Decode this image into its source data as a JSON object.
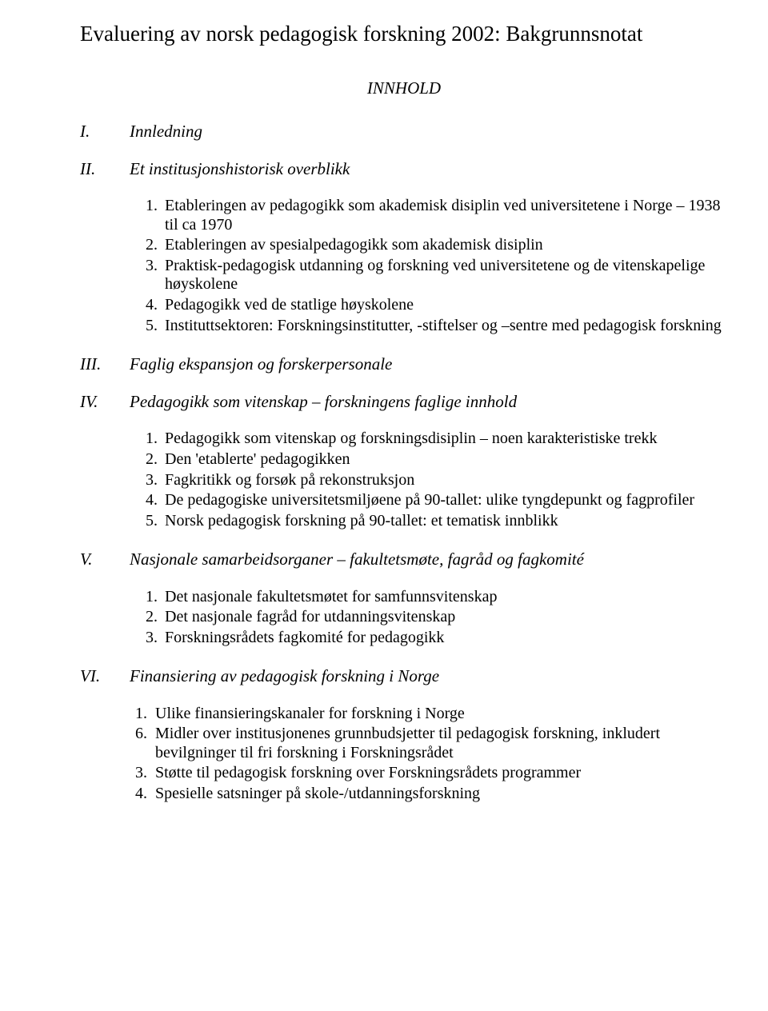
{
  "title": "Evaluering av norsk pedagogisk forskning 2002: Bakgrunnsnotat",
  "innhold": "INNHOLD",
  "sections": {
    "s1": {
      "roman": "I.",
      "label": "Innledning"
    },
    "s2": {
      "roman": "II.",
      "label": "Et institusjonshistorisk overblikk"
    },
    "s3": {
      "roman": "III.",
      "label": "Faglig ekspansjon og forskerpersonale"
    },
    "s4": {
      "roman": "IV.",
      "label": "Pedagogikk som vitenskap – forskningens faglige innhold"
    },
    "s5": {
      "roman": "V.",
      "label": "Nasjonale samarbeidsorganer – fakultetsmøte, fagråd og fagkomité"
    },
    "s6": {
      "roman": "VI.",
      "label": "Finansiering av pedagogisk forskning i Norge"
    }
  },
  "list2": [
    "Etableringen av pedagogikk som akademisk disiplin ved universitetene i Norge – 1938 til ca 1970",
    "Etableringen av spesialpedagogikk som akademisk disiplin",
    "Praktisk-pedagogisk utdanning og forskning ved universitetene og de vitenskapelige høyskolene",
    "Pedagogikk ved de statlige høyskolene",
    "Instituttsektoren: Forskningsinstitutter, -stiftelser og –sentre med pedagogisk forskning"
  ],
  "list4": [
    "Pedagogikk som vitenskap og forskningsdisiplin – noen karakteristiske trekk",
    "Den 'etablerte' pedagogikken",
    "Fagkritikk og forsøk på rekonstruksjon",
    "De pedagogiske universitetsmiljøene på 90-tallet: ulike tyngdepunkt og fagprofiler",
    "Norsk pedagogisk forskning på 90-tallet: et tematisk innblikk"
  ],
  "list5": [
    "Det nasjonale fakultetsmøtet for samfunnsvitenskap",
    "Det nasjonale fagråd for utdanningsvitenskap",
    "Forskningsrådets fagkomité for pedagogikk"
  ],
  "list6": [
    {
      "n": "1",
      "t": "Ulike finansieringskanaler for forskning i Norge"
    },
    {
      "n": "6",
      "t": "Midler over institusjonenes grunnbudsjetter til pedagogisk forskning, inkludert bevilgninger til fri forskning i Forskningsrådet"
    },
    {
      "n": "3",
      "t": "Støtte til pedagogisk forskning over Forskningsrådets programmer"
    },
    {
      "n": "4",
      "t": "Spesielle satsninger på skole-/utdanningsforskning"
    }
  ]
}
